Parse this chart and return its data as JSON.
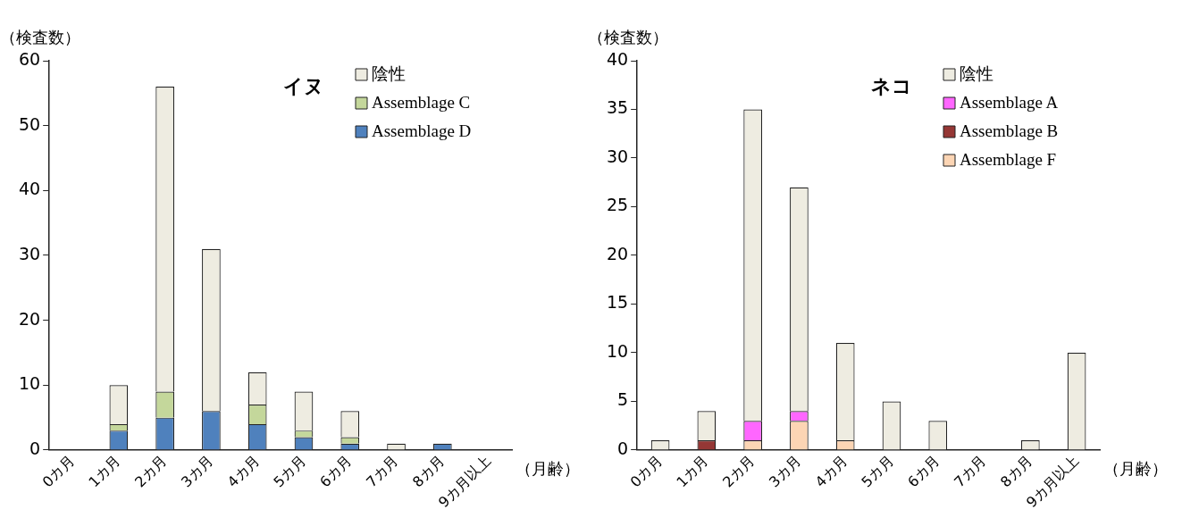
{
  "chart_data": [
    {
      "type": "bar",
      "title": "イヌ",
      "ylabel": "（検査数）",
      "xlabel": "（月齢）",
      "stacked": true,
      "legend": "top right",
      "grid": false,
      "categories": [
        "0カ月",
        "1カ月",
        "2カ月",
        "3カ月",
        "4カ月",
        "5カ月",
        "6カ月",
        "7カ月",
        "8カ月",
        "9カ月以上"
      ],
      "ylim": [
        0,
        60
      ],
      "yticks": [
        0,
        10,
        20,
        30,
        40,
        50,
        60
      ],
      "series": [
        {
          "name": "Assemblage D",
          "color": "#4f81bd",
          "values": [
            0,
            3,
            5,
            6,
            4,
            2,
            1,
            0,
            1,
            0
          ]
        },
        {
          "name": "Assemblage C",
          "color": "#c4d79b",
          "values": [
            0,
            1,
            4,
            0,
            3,
            1,
            1,
            0,
            0,
            0
          ]
        },
        {
          "name": "陰性",
          "color": "#eeece1",
          "values": [
            0,
            6,
            47,
            25,
            5,
            6,
            4,
            1,
            0,
            0
          ]
        }
      ]
    },
    {
      "type": "bar",
      "title": "ネコ",
      "ylabel": "（検査数）",
      "xlabel": "（月齢）",
      "stacked": true,
      "legend": "top right",
      "grid": false,
      "categories": [
        "0カ月",
        "1カ月",
        "2カ月",
        "3カ月",
        "4カ月",
        "5カ月",
        "6カ月",
        "7カ月",
        "8カ月",
        "9カ月以上"
      ],
      "ylim": [
        0,
        40
      ],
      "yticks": [
        0,
        5,
        10,
        15,
        20,
        25,
        30,
        35,
        40
      ],
      "series": [
        {
          "name": "Assemblage F",
          "color": "#fcd5b4",
          "values": [
            0,
            0,
            1,
            3,
            1,
            0,
            0,
            0,
            0,
            0
          ]
        },
        {
          "name": "Assemblage B",
          "color": "#953735",
          "values": [
            0,
            1,
            0,
            0,
            0,
            0,
            0,
            0,
            0,
            0
          ]
        },
        {
          "name": "Assemblage A",
          "color": "#ff66ff",
          "values": [
            0,
            0,
            2,
            1,
            0,
            0,
            0,
            0,
            0,
            0
          ]
        },
        {
          "name": "陰性",
          "color": "#eeece1",
          "values": [
            1,
            3,
            32,
            23,
            10,
            5,
            3,
            0,
            1,
            10
          ]
        }
      ]
    }
  ]
}
